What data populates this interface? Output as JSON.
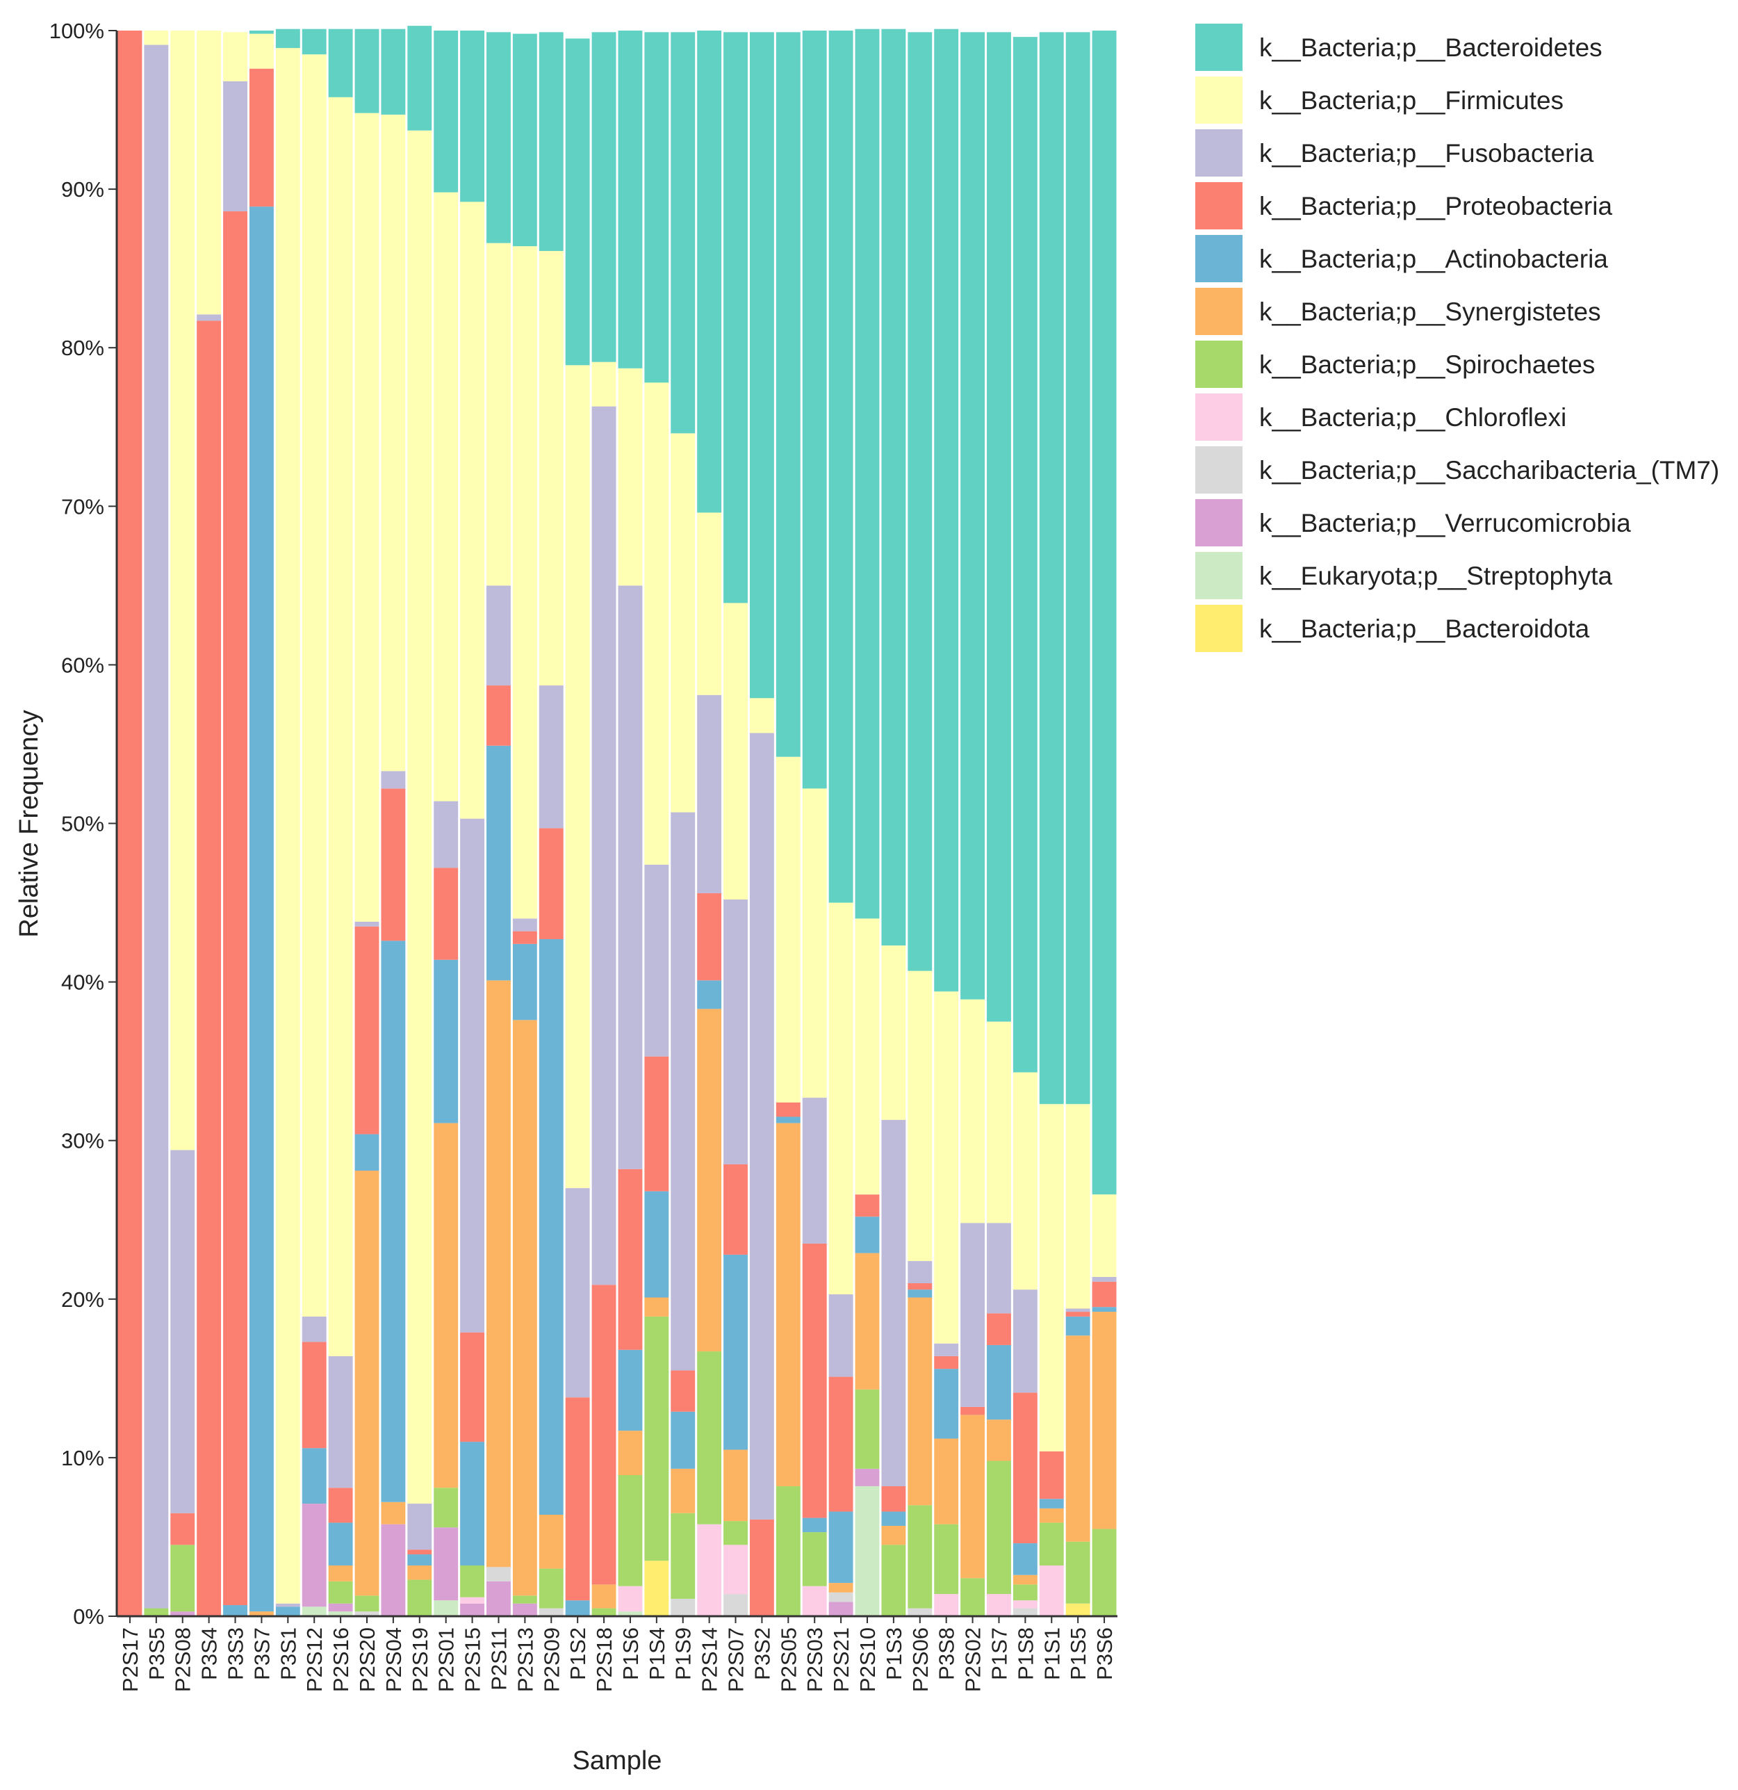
{
  "chart_data": {
    "type": "bar",
    "stacked": true,
    "title": "",
    "xlabel": "Sample",
    "ylabel": "Relative Frequency",
    "ylim": [
      0,
      100
    ],
    "yticks": [
      "0%",
      "10%",
      "20%",
      "30%",
      "40%",
      "50%",
      "60%",
      "70%",
      "80%",
      "90%",
      "100%"
    ],
    "legend_position": "top-right",
    "categories": [
      "P2S17",
      "P3S5",
      "P2S08",
      "P3S4",
      "P3S3",
      "P3S7",
      "P3S1",
      "P2S12",
      "P2S16",
      "P2S20",
      "P2S04",
      "P2S19",
      "P2S01",
      "P2S15",
      "P2S11",
      "P2S13",
      "P2S09",
      "P1S2",
      "P2S18",
      "P1S6",
      "P1S4",
      "P1S9",
      "P2S14",
      "P2S07",
      "P3S2",
      "P2S05",
      "P2S03",
      "P2S21",
      "P2S10",
      "P1S3",
      "P2S06",
      "P3S8",
      "P2S02",
      "P1S7",
      "P1S8",
      "P1S1",
      "P1S5",
      "P3S6"
    ],
    "series": [
      {
        "name": "k__Bacteria;p__Bacteroidota",
        "color": "#ffed6f",
        "values": [
          0,
          0,
          0,
          0,
          0,
          0,
          0,
          0,
          0,
          0,
          0,
          0,
          0,
          0,
          0,
          0,
          0,
          0,
          0,
          0,
          3.5,
          0,
          0,
          0,
          0,
          0,
          0,
          0,
          0,
          0,
          0,
          0,
          0,
          0,
          0,
          0,
          0.8,
          0
        ]
      },
      {
        "name": "k__Eukaryota;p__Streptophyta",
        "color": "#ccebc5",
        "values": [
          0,
          0,
          0,
          0,
          0,
          0,
          0,
          0.6,
          0.3,
          0,
          0,
          0,
          1.0,
          0,
          0,
          0,
          0,
          0,
          0,
          0.3,
          0,
          0,
          0,
          0,
          0,
          0,
          0,
          0,
          8.2,
          0,
          0,
          0,
          0,
          0,
          0,
          0,
          0,
          0
        ]
      },
      {
        "name": "k__Bacteria;p__Verrucomicrobia",
        "color": "#d9a0d3",
        "values": [
          0,
          0,
          0.3,
          0,
          0,
          0,
          0,
          6.5,
          0.5,
          0,
          5.8,
          0,
          4.6,
          0.8,
          2.2,
          0.8,
          0,
          0,
          0,
          0,
          0,
          0,
          0,
          0,
          0,
          0,
          0,
          0.9,
          1.1,
          0,
          0,
          0,
          0,
          0,
          0,
          0,
          0,
          0
        ]
      },
      {
        "name": "k__Bacteria;p__Saccharibacteria_(TM7)",
        "color": "#d9d9d9",
        "values": [
          0,
          0,
          0,
          0,
          0,
          0,
          0,
          0,
          0,
          0.3,
          0,
          0,
          0,
          0,
          0.9,
          0,
          0.5,
          0,
          0,
          0,
          0,
          1.1,
          0,
          1.4,
          0,
          0,
          0,
          0.6,
          0,
          0,
          0.5,
          0,
          0,
          0,
          0.5,
          0,
          0,
          0
        ]
      },
      {
        "name": "k__Bacteria;p__Chloroflexi",
        "color": "#fccde5",
        "values": [
          0,
          0,
          0,
          0,
          0,
          0,
          0,
          0,
          0,
          0,
          0,
          0,
          0,
          0.4,
          0,
          0,
          0,
          0,
          0,
          1.6,
          0,
          0,
          5.8,
          3.1,
          0,
          0,
          1.9,
          0,
          0,
          0,
          0,
          1.4,
          0,
          1.4,
          0.5,
          3.2,
          0,
          0
        ]
      },
      {
        "name": "k__Bacteria;p__Spirochaetes",
        "color": "#a6d96a",
        "values": [
          0,
          0.5,
          4.2,
          0,
          0,
          0,
          0,
          0,
          1.4,
          1.0,
          0,
          2.3,
          2.5,
          2.0,
          0,
          0.5,
          2.5,
          0,
          0.5,
          7.0,
          15.4,
          5.4,
          10.9,
          1.5,
          0,
          8.2,
          3.4,
          0,
          5.0,
          4.5,
          6.5,
          4.4,
          2.4,
          8.4,
          1.0,
          2.7,
          3.9,
          5.5
        ]
      },
      {
        "name": "k__Bacteria;p__Synergistetes",
        "color": "#fdb462",
        "values": [
          0,
          0,
          0,
          0,
          0,
          0.3,
          0,
          0,
          1.0,
          26.8,
          1.4,
          0.9,
          23.0,
          0,
          37.0,
          36.3,
          3.4,
          0,
          1.5,
          2.8,
          1.2,
          2.8,
          21.6,
          4.5,
          0,
          22.9,
          0,
          0.6,
          8.6,
          1.2,
          13.1,
          5.4,
          10.3,
          2.6,
          0.6,
          0.9,
          13.0,
          13.7
        ]
      },
      {
        "name": "k__Bacteria;p__Actinobacteria",
        "color": "#6cb4d6",
        "values": [
          0,
          0,
          0,
          0,
          0.7,
          88.6,
          0.6,
          3.5,
          2.7,
          2.3,
          35.4,
          0.7,
          10.3,
          7.8,
          14.8,
          4.8,
          36.3,
          1.0,
          0,
          5.1,
          6.7,
          3.6,
          1.8,
          12.3,
          0,
          0.4,
          0.9,
          4.5,
          2.3,
          0.9,
          0.5,
          4.4,
          0,
          4.7,
          2.0,
          0.6,
          1.2,
          0.3
        ]
      },
      {
        "name": "k__Bacteria;p__Proteobacteria",
        "color": "#fb8072",
        "values": [
          100,
          0,
          2.0,
          81.7,
          87.9,
          8.7,
          0,
          6.7,
          2.2,
          13.1,
          9.6,
          0.3,
          5.8,
          6.9,
          3.8,
          0.8,
          7.0,
          12.8,
          18.9,
          11.4,
          8.5,
          2.6,
          5.5,
          5.7,
          6.1,
          0.9,
          17.3,
          8.5,
          1.4,
          1.6,
          0.4,
          0.8,
          0.5,
          2.0,
          9.5,
          3.0,
          0.3,
          1.6
        ]
      },
      {
        "name": "k__Bacteria;p__Fusobacteria",
        "color": "#bebada",
        "values": [
          0,
          98.6,
          22.9,
          0.4,
          8.2,
          0,
          0.2,
          1.6,
          8.3,
          0.3,
          1.1,
          2.9,
          4.2,
          32.4,
          6.3,
          0.8,
          9.0,
          13.2,
          55.4,
          36.8,
          12.1,
          35.2,
          12.5,
          16.7,
          49.6,
          0,
          9.2,
          5.2,
          0,
          23.1,
          1.4,
          0.8,
          11.6,
          5.7,
          6.5,
          0,
          0.2,
          0.3
        ]
      },
      {
        "name": "k__Bacteria;p__Firmicutes",
        "color": "#ffffb3",
        "values": [
          0,
          0.9,
          70.6,
          17.9,
          3.1,
          2.2,
          98.1,
          79.6,
          79.4,
          51.0,
          41.4,
          86.6,
          38.4,
          38.9,
          21.6,
          42.4,
          27.4,
          51.9,
          2.8,
          13.7,
          30.4,
          23.9,
          11.5,
          18.7,
          2.2,
          21.8,
          19.5,
          24.7,
          17.4,
          11.0,
          18.3,
          22.2,
          14.1,
          12.7,
          13.7,
          21.9,
          12.9,
          5.2
        ]
      },
      {
        "name": "k__Bacteria;p__Bacteroidetes",
        "color": "#61d1c4",
        "values": [
          0,
          0,
          0,
          0,
          0,
          0.2,
          1.2,
          1.6,
          4.3,
          5.3,
          5.4,
          6.6,
          10.2,
          10.8,
          13.3,
          13.4,
          13.8,
          20.6,
          20.8,
          21.3,
          22.1,
          25.3,
          30.4,
          36.0,
          42.0,
          45.7,
          47.8,
          55.0,
          56.1,
          57.8,
          59.2,
          60.7,
          61.0,
          62.4,
          65.3,
          67.6,
          67.6,
          73.4
        ]
      }
    ],
    "legend_order": [
      "k__Bacteria;p__Bacteroidetes",
      "k__Bacteria;p__Firmicutes",
      "k__Bacteria;p__Fusobacteria",
      "k__Bacteria;p__Proteobacteria",
      "k__Bacteria;p__Actinobacteria",
      "k__Bacteria;p__Synergistetes",
      "k__Bacteria;p__Spirochaetes",
      "k__Bacteria;p__Chloroflexi",
      "k__Bacteria;p__Saccharibacteria_(TM7)",
      "k__Bacteria;p__Verrucomicrobia",
      "k__Eukaryota;p__Streptophyta",
      "k__Bacteria;p__Bacteroidota"
    ]
  }
}
